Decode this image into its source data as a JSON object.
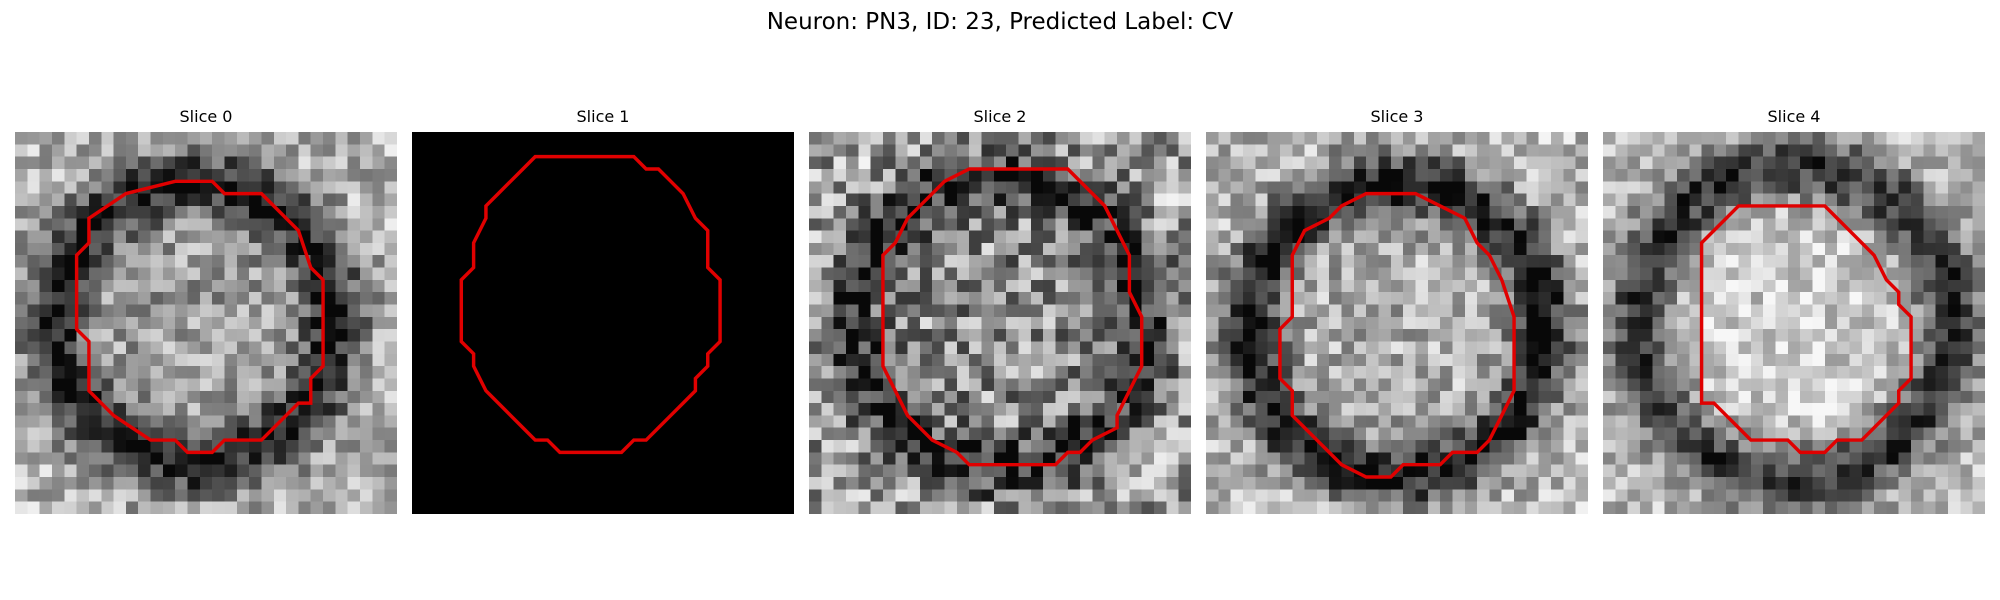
{
  "figure": {
    "title": "Neuron: PN3, ID: 23, Predicted Label: CV"
  },
  "panels": [
    {
      "title": "Slice 0",
      "image": "grayscale-microscopy-slice",
      "has_contour": true
    },
    {
      "title": "Slice 1",
      "image": "black-mask",
      "has_contour": true
    },
    {
      "title": "Slice 2",
      "image": "grayscale-microscopy-slice",
      "has_contour": true
    },
    {
      "title": "Slice 3",
      "image": "grayscale-microscopy-slice",
      "has_contour": true
    },
    {
      "title": "Slice 4",
      "image": "grayscale-microscopy-slice",
      "has_contour": true
    }
  ],
  "colors": {
    "contour": "#e00000",
    "background": "#ffffff",
    "mask": "#000000"
  }
}
